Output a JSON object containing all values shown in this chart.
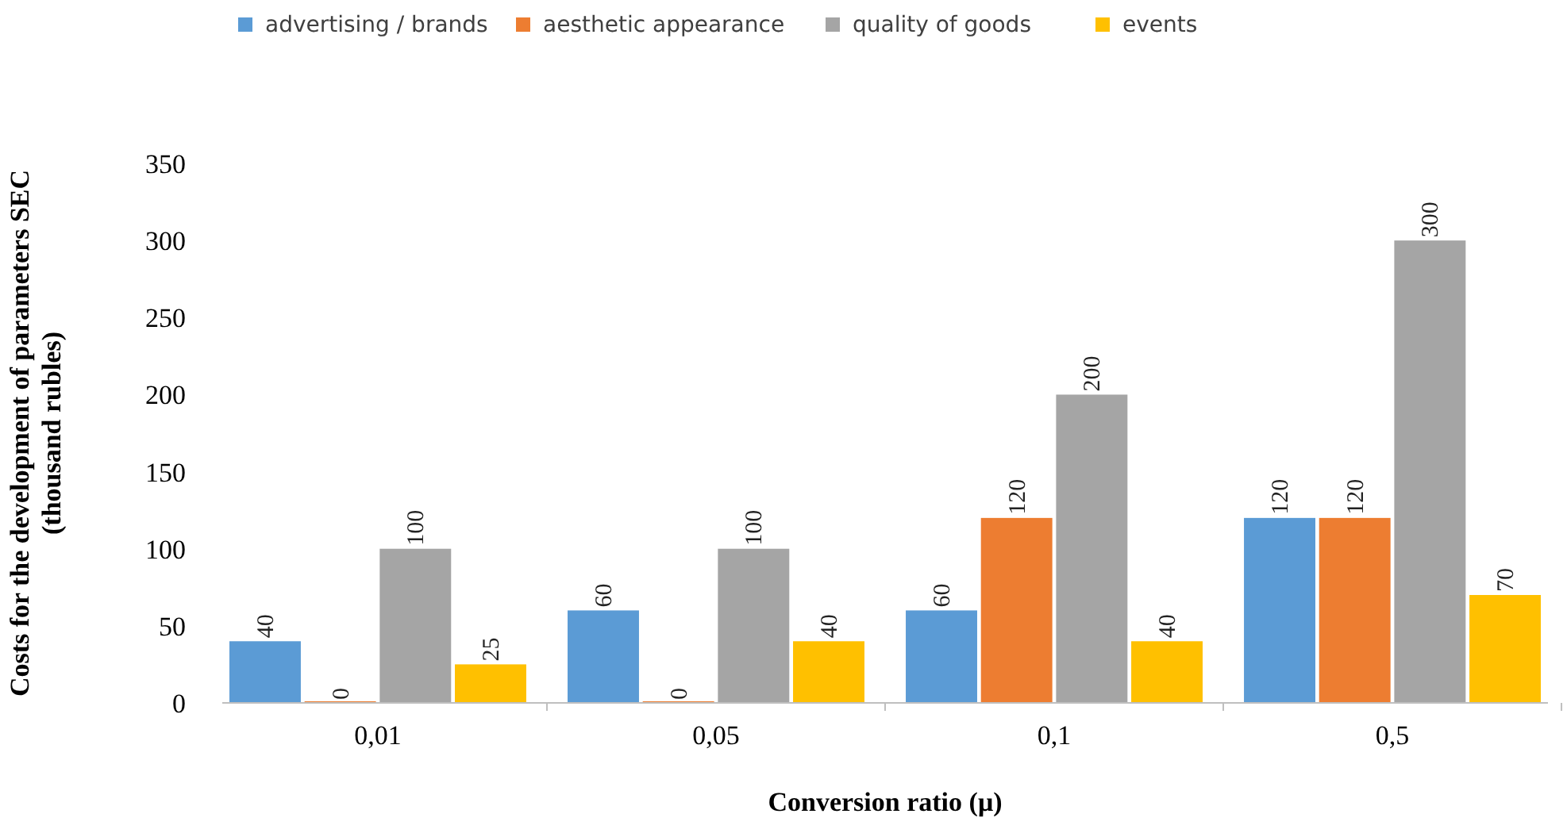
{
  "chart_data": {
    "type": "bar",
    "xlabel": "Conversion ratio (μ)",
    "ylabel": "Costs for the development of parameters SEC (thousand rubles)",
    "categories": [
      "0,01",
      "0,05",
      "0,1",
      "0,5"
    ],
    "series": [
      {
        "name": "advertising / brands",
        "color": "#5b9bd5",
        "values": [
          40,
          60,
          60,
          120
        ]
      },
      {
        "name": "aesthetic appearance",
        "color": "#ed7d31",
        "values": [
          0,
          0,
          120,
          120
        ]
      },
      {
        "name": "quality of goods",
        "color": "#a5a5a5",
        "values": [
          100,
          100,
          200,
          300
        ]
      },
      {
        "name": "events",
        "color": "#ffc000",
        "values": [
          25,
          40,
          40,
          70
        ]
      }
    ],
    "ylim": [
      0,
      350
    ],
    "yticks": [
      0,
      50,
      100,
      150,
      200,
      250,
      300,
      350
    ],
    "grid": false,
    "legend": "top",
    "data_labels": true
  }
}
